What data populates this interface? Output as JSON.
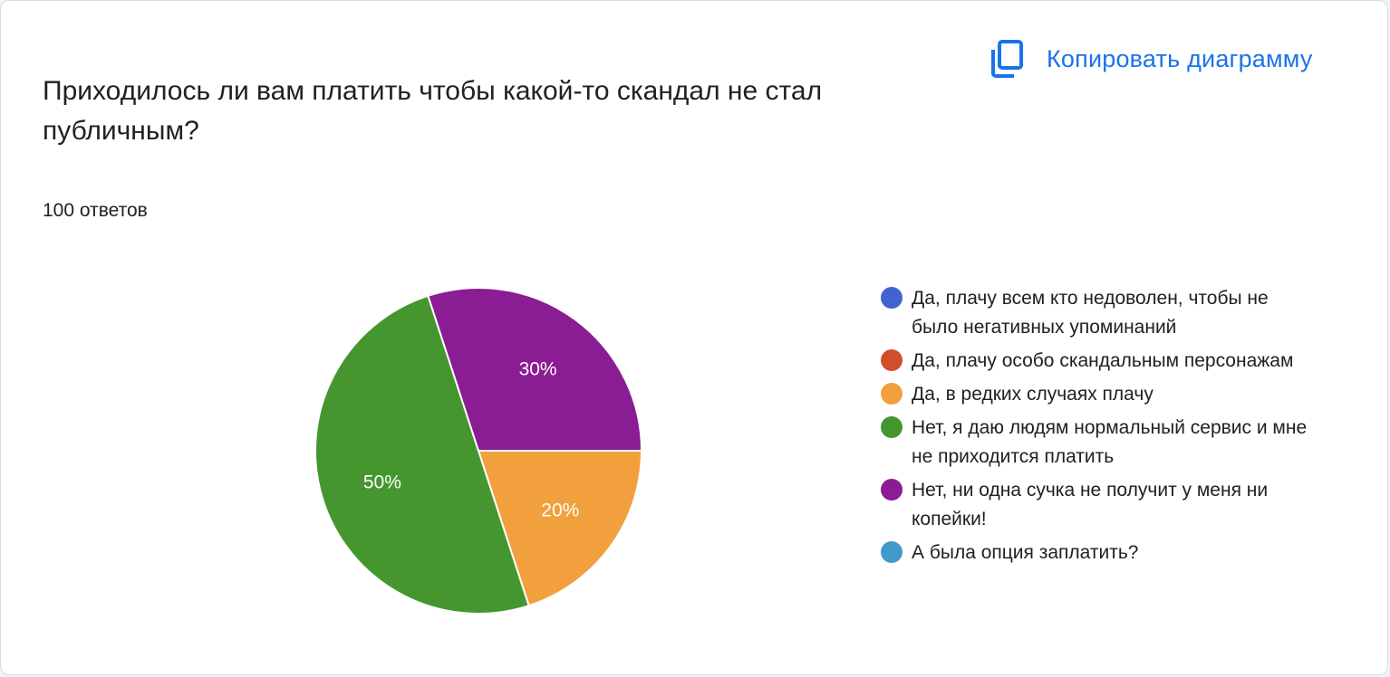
{
  "copy_button": {
    "label": "Копировать диаграмму",
    "icon": "copy-icon",
    "color": "#1a73e8"
  },
  "question": {
    "title": "Приходилось ли вам платить чтобы какой-то скандал не стал публичным?"
  },
  "responses_count": "100 ответов",
  "chart_data": {
    "type": "pie",
    "title": "",
    "legend_placement": "right",
    "slices": [
      {
        "label": "Да, плачу всем кто недоволен, чтобы не было негативных упоминаний",
        "value": 0,
        "percent_label": "",
        "color": "#3f63cf"
      },
      {
        "label": "Да, плачу особо скандальным персонажам",
        "value": 0,
        "percent_label": "",
        "color": "#d24e2b"
      },
      {
        "label": "Да, в редких случаях плачу",
        "value": 20,
        "percent_label": "20%",
        "color": "#f2a03d"
      },
      {
        "label": "Нет, я даю людям нормальный сервис и мне не приходится платить",
        "value": 50,
        "percent_label": "50%",
        "color": "#45962f"
      },
      {
        "label": "Нет, ни одна сучка не получит у меня ни копейки!",
        "value": 30,
        "percent_label": "30%",
        "color": "#8a1c94"
      },
      {
        "label": "А была опция заплатить?",
        "value": 0,
        "percent_label": "",
        "color": "#4299c9"
      }
    ]
  }
}
